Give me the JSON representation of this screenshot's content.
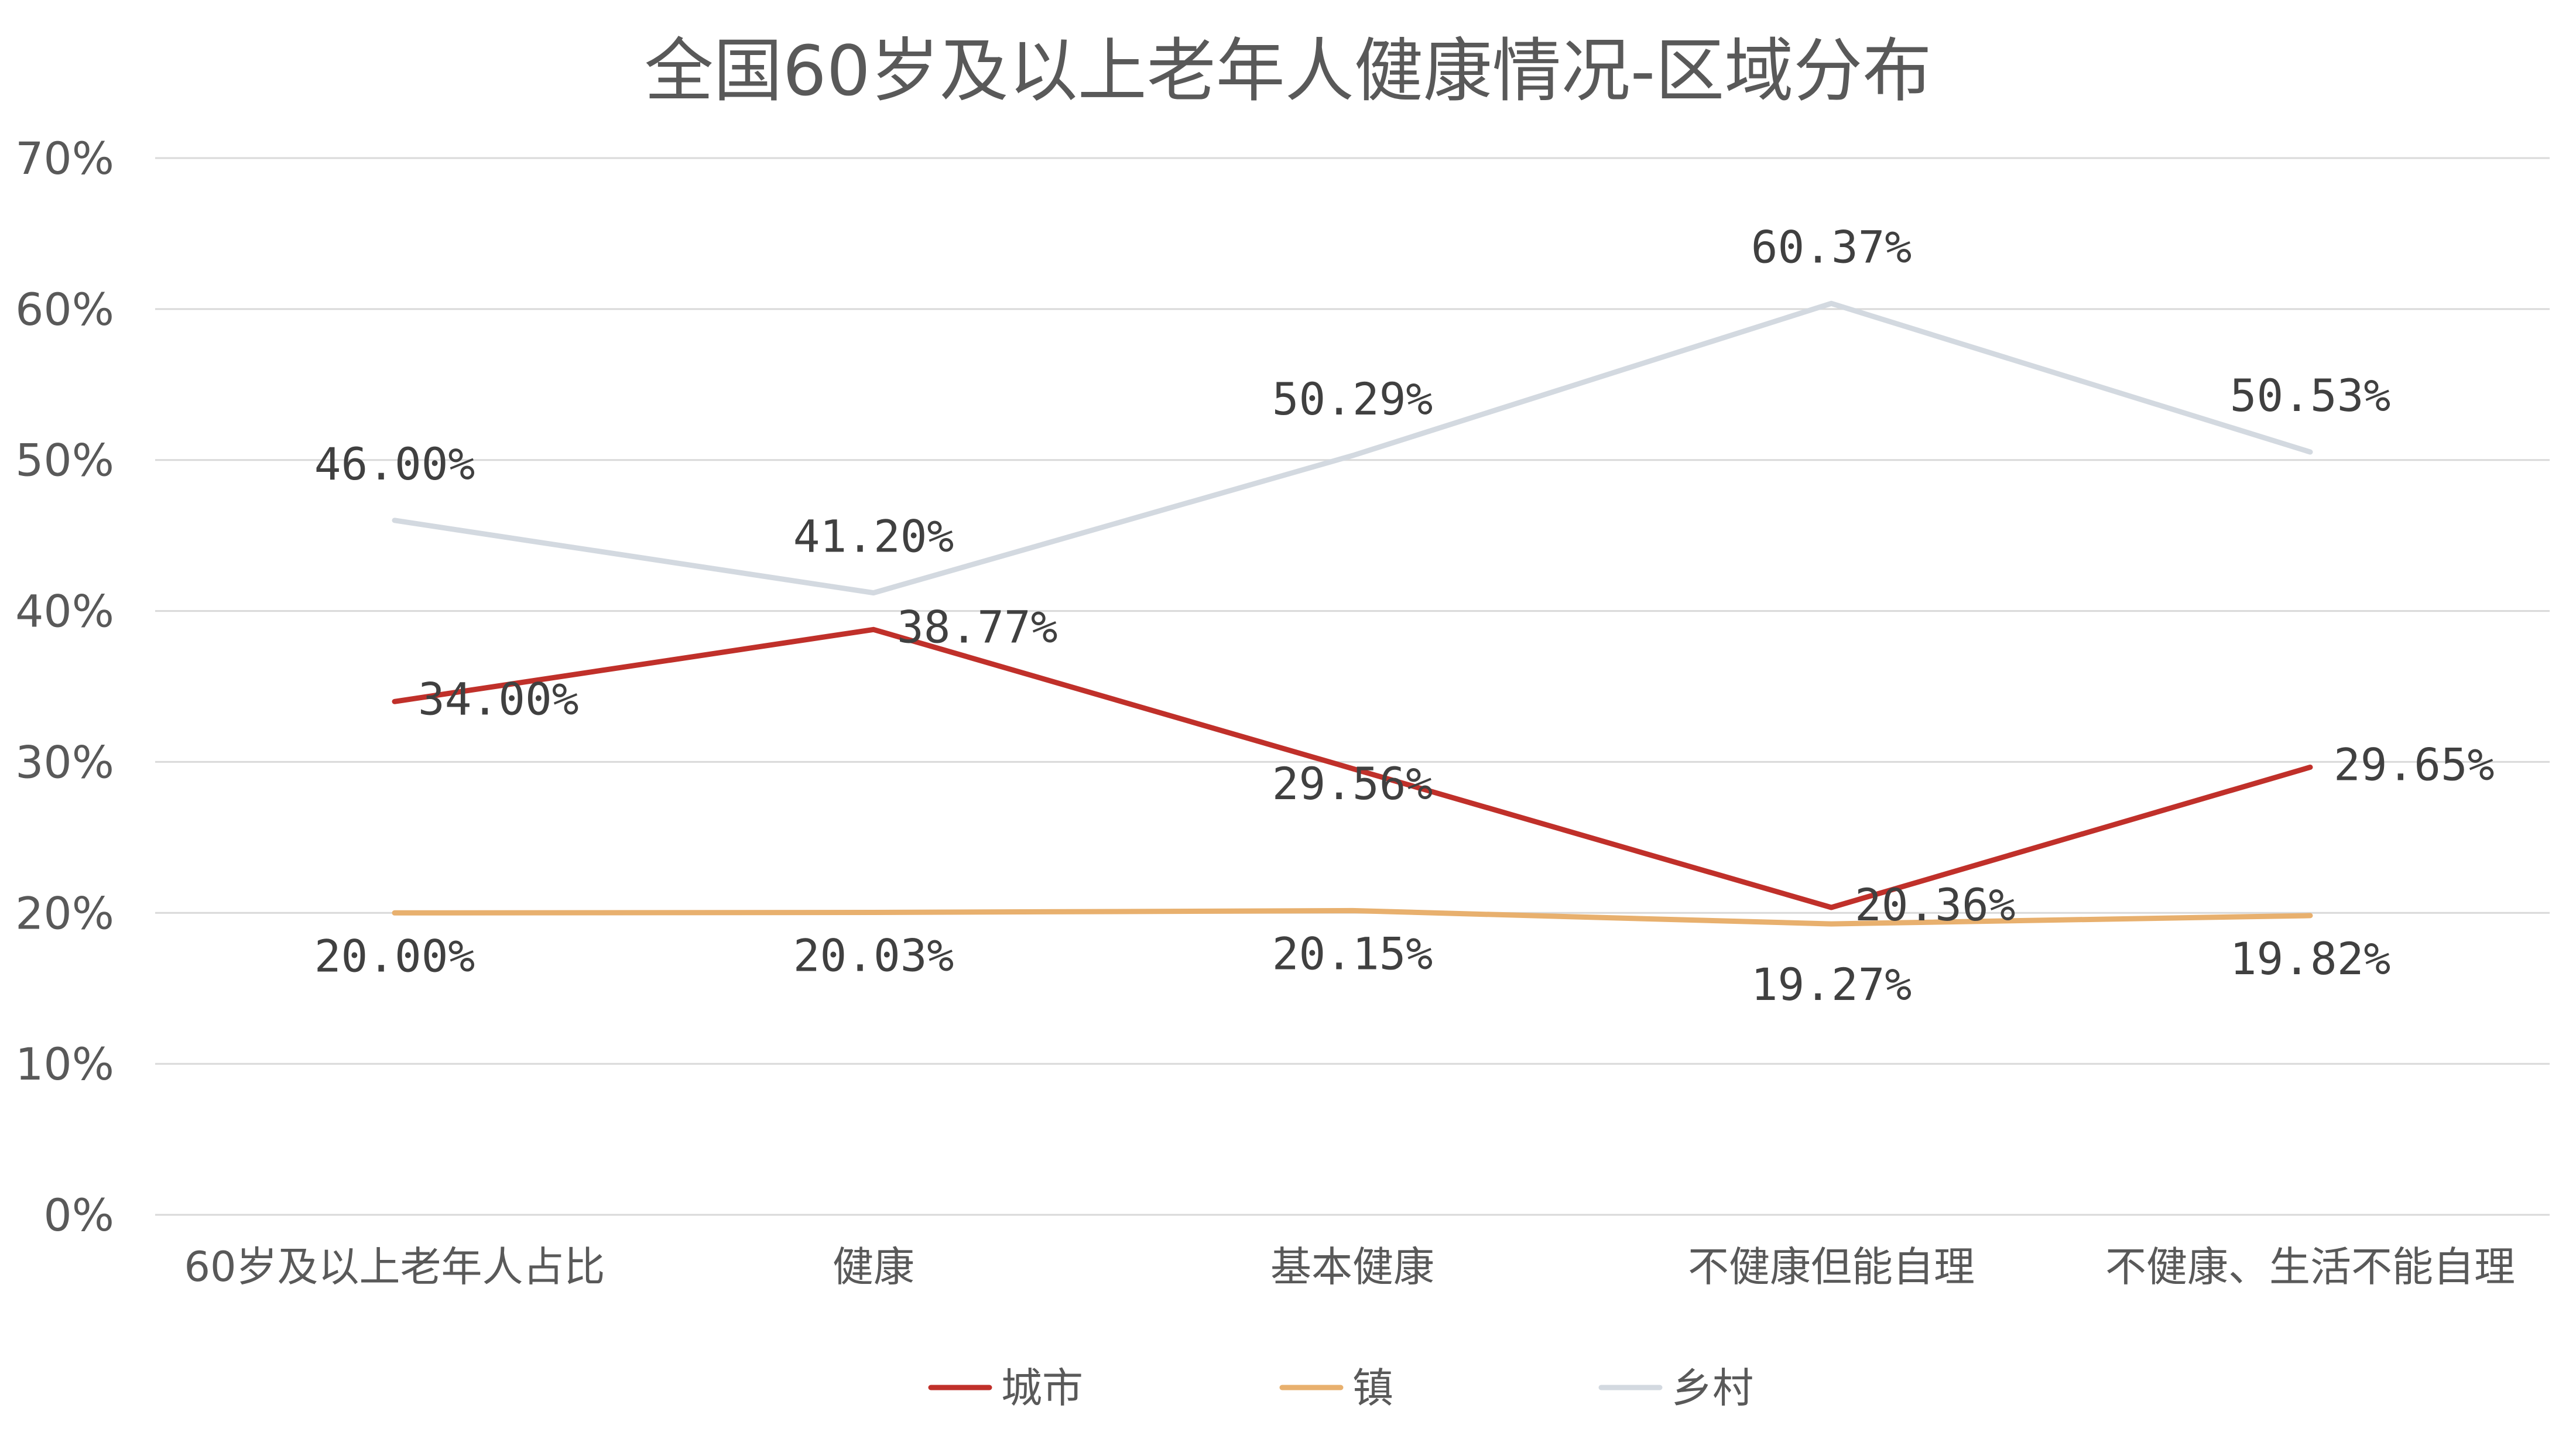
{
  "chart_data": {
    "type": "line",
    "title": "全国60岁及以上老年人健康情况-区域分布",
    "categories": [
      "60岁及以上老年人占比",
      "健康",
      "基本健康",
      "不健康但能自理",
      "不健康、生活不能自理"
    ],
    "ylim": [
      0,
      70
    ],
    "yticks": [
      0,
      10,
      20,
      30,
      40,
      50,
      60,
      70
    ],
    "ytick_labels": [
      "0%",
      "10%",
      "20%",
      "30%",
      "40%",
      "50%",
      "60%",
      "70%"
    ],
    "grid": true,
    "legend_position": "bottom",
    "series": [
      {
        "name": "城市",
        "color": "#c0302a",
        "values": [
          34.0,
          38.77,
          29.56,
          20.36,
          29.65
        ],
        "labels": [
          "34.00%",
          "38.77%",
          "29.56%",
          "20.36%",
          "29.65%"
        ]
      },
      {
        "name": "镇",
        "color": "#e8b06e",
        "values": [
          20.0,
          20.03,
          20.15,
          19.27,
          19.82
        ],
        "labels": [
          "20.00%",
          "20.03%",
          "20.15%",
          "19.27%",
          "19.82%"
        ]
      },
      {
        "name": "乡村",
        "color": "#d3d9e0",
        "values": [
          46.0,
          41.2,
          50.29,
          60.37,
          50.53
        ],
        "labels": [
          "46.00%",
          "41.20%",
          "50.29%",
          "60.37%",
          "50.53%"
        ]
      }
    ]
  }
}
